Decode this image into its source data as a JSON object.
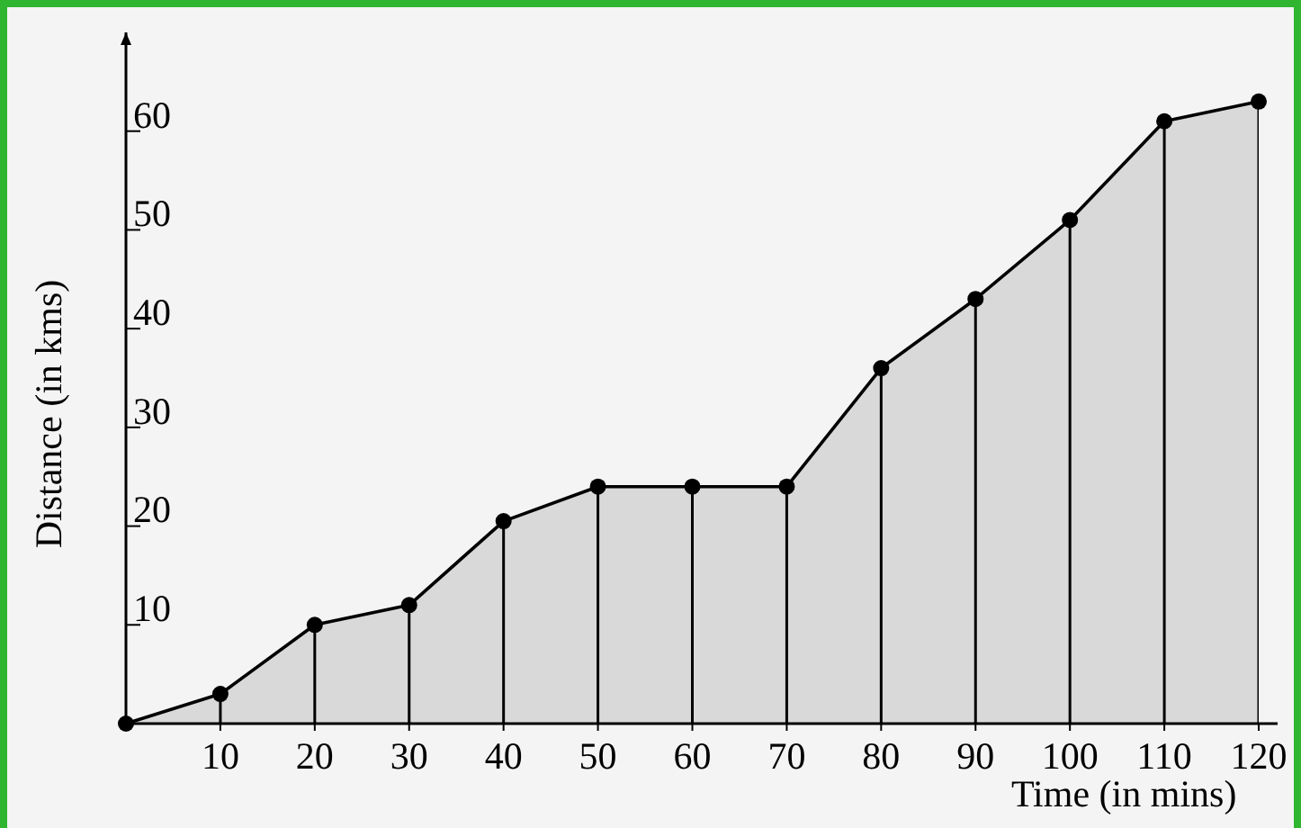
{
  "chart_data": {
    "type": "area",
    "xlabel": "Time (in mins)",
    "ylabel": "Distance (in kms)",
    "x": [
      0,
      10,
      20,
      30,
      40,
      50,
      60,
      70,
      80,
      90,
      100,
      110,
      120
    ],
    "series": [
      {
        "color": "#d9d9d9",
        "values": [
          0,
          3,
          10,
          12,
          20.5,
          24,
          24,
          24,
          36,
          43,
          51,
          61,
          63
        ]
      }
    ],
    "xlim": [
      0,
      122
    ],
    "ylim": [
      0,
      70
    ],
    "xticks": [
      10,
      20,
      30,
      40,
      50,
      60,
      70,
      80,
      90,
      100,
      110,
      120
    ],
    "yticks": [
      10,
      20,
      30,
      40,
      50,
      60
    ],
    "grid": "x",
    "marker": "circle",
    "line_style": "solid"
  }
}
